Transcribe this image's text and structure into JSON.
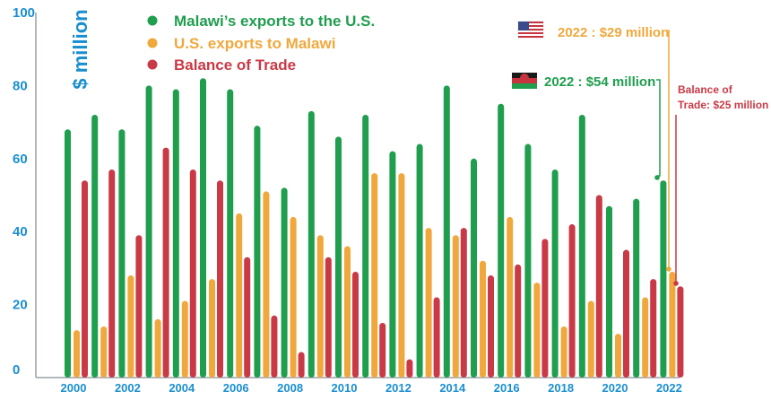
{
  "chart_data": {
    "type": "bar",
    "ylabel": "$ million",
    "ylim": [
      0,
      100
    ],
    "yticks": [
      "0",
      "20",
      "40",
      "60",
      "80",
      "100"
    ],
    "xtick_labels": [
      "2000",
      "2002",
      "2004",
      "2006",
      "2008",
      "2010",
      "2012",
      "2014",
      "2016",
      "2018",
      "2020",
      "2022"
    ],
    "categories": [
      "2000",
      "2001",
      "2002",
      "2003",
      "2004",
      "2005",
      "2006",
      "2007",
      "2008",
      "2009",
      "2010",
      "2011",
      "2012",
      "2013",
      "2014",
      "2015",
      "2016",
      "2017",
      "2018",
      "2019",
      "2020",
      "2021",
      "2022"
    ],
    "legend_position": "top-left",
    "series": [
      {
        "name": "Malawi’s exports to the U.S.",
        "color": "#1f9e4e",
        "values": [
          68,
          72,
          68,
          80,
          79,
          82,
          79,
          69,
          52,
          73,
          66,
          72,
          62,
          64,
          80,
          60,
          75,
          64,
          57,
          72,
          47,
          49,
          54
        ]
      },
      {
        "name": "U.S. exports to Malawi",
        "color": "#f0a83c",
        "values": [
          13,
          14,
          28,
          16,
          21,
          27,
          45,
          51,
          44,
          39,
          36,
          56,
          56,
          41,
          39,
          32,
          44,
          26,
          14,
          21,
          12,
          22,
          29
        ]
      },
      {
        "name": "Balance of Trade",
        "color": "#c93a46",
        "values": [
          54,
          57,
          39,
          63,
          57,
          54,
          33,
          17,
          7,
          33,
          29,
          15,
          5,
          22,
          41,
          28,
          31,
          38,
          42,
          50,
          35,
          27,
          25
        ]
      }
    ],
    "annotations": {
      "us_exports_2022": "2022 : $29 million",
      "malawi_exports_2022": "2022 : $54 million",
      "balance_line1": "Balance of",
      "balance_line2": "Trade: $25 million"
    },
    "flag_icons": [
      "us-flag-icon",
      "malawi-flag-icon"
    ]
  }
}
